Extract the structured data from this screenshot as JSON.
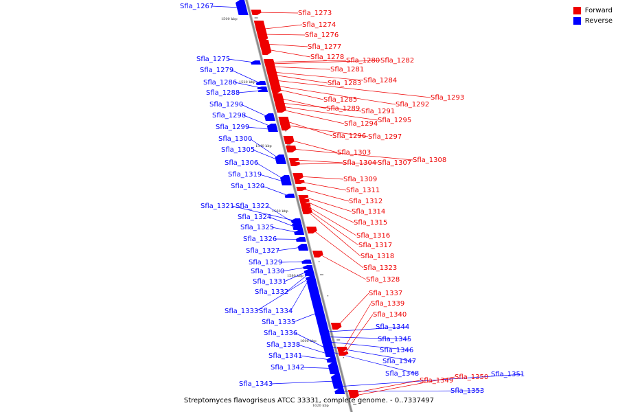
{
  "caption": "Streptomyces flavogriseus ATCC 33331, complete genome. - 0..7337497",
  "legend": [
    {
      "label": "Forward",
      "color": "#ee0000"
    },
    {
      "label": "Reverse",
      "color": "#0000ff"
    }
  ],
  "colors": {
    "forward": "#ee0000",
    "reverse": "#0000ff",
    "backbone": "#888888"
  },
  "ticks": [
    "1500 kbp",
    "1520 kbp",
    "1540 kbp",
    "1560 kbp",
    "1580 kbp",
    "1600 kbp",
    "1620 kbp"
  ],
  "genes": {
    "reverse": [
      "Sfla_1267",
      "Sfla_1275",
      "Sfla_1279",
      "Sfla_1286",
      "Sfla_1288",
      "Sfla_1290",
      "Sfla_1298",
      "Sfla_1299",
      "Sfla_1300",
      "Sfla_1305",
      "Sfla_1306",
      "Sfla_1319",
      "Sfla_1320",
      "Sfla_1321",
      "Sfla_1322",
      "Sfla_1324",
      "Sfla_1325",
      "Sfla_1326",
      "Sfla_1327",
      "Sfla_1329",
      "Sfla_1330",
      "Sfla_1331",
      "Sfla_1332",
      "Sfla_1333",
      "Sfla_1334",
      "Sfla_1335",
      "Sfla_1336",
      "Sfla_1338",
      "Sfla_1341",
      "Sfla_1342",
      "Sfla_1343",
      "Sfla_1344",
      "Sfla_1345",
      "Sfla_1346",
      "Sfla_1347",
      "Sfla_1348",
      "Sfla_1351",
      "Sfla_1353"
    ],
    "forward": [
      "Sfla_1273",
      "Sfla_1274",
      "Sfla_1276",
      "Sfla_1277",
      "Sfla_1278",
      "Sfla_1280",
      "Sfla_1282",
      "Sfla_1281",
      "Sfla_1284",
      "Sfla_1283",
      "Sfla_1293",
      "Sfla_1292",
      "Sfla_1285",
      "Sfla_1289",
      "Sfla_1291",
      "Sfla_1295",
      "Sfla_1294",
      "Sfla_1296",
      "Sfla_1297",
      "Sfla_1303",
      "Sfla_1308",
      "Sfla_1304",
      "Sfla_1307",
      "Sfla_1309",
      "Sfla_1311",
      "Sfla_1312",
      "Sfla_1314",
      "Sfla_1315",
      "Sfla_1316",
      "Sfla_1317",
      "Sfla_1318",
      "Sfla_1323",
      "Sfla_1328",
      "Sfla_1337",
      "Sfla_1339",
      "Sfla_1340",
      "Sfla_1349",
      "Sfla_1350"
    ]
  }
}
